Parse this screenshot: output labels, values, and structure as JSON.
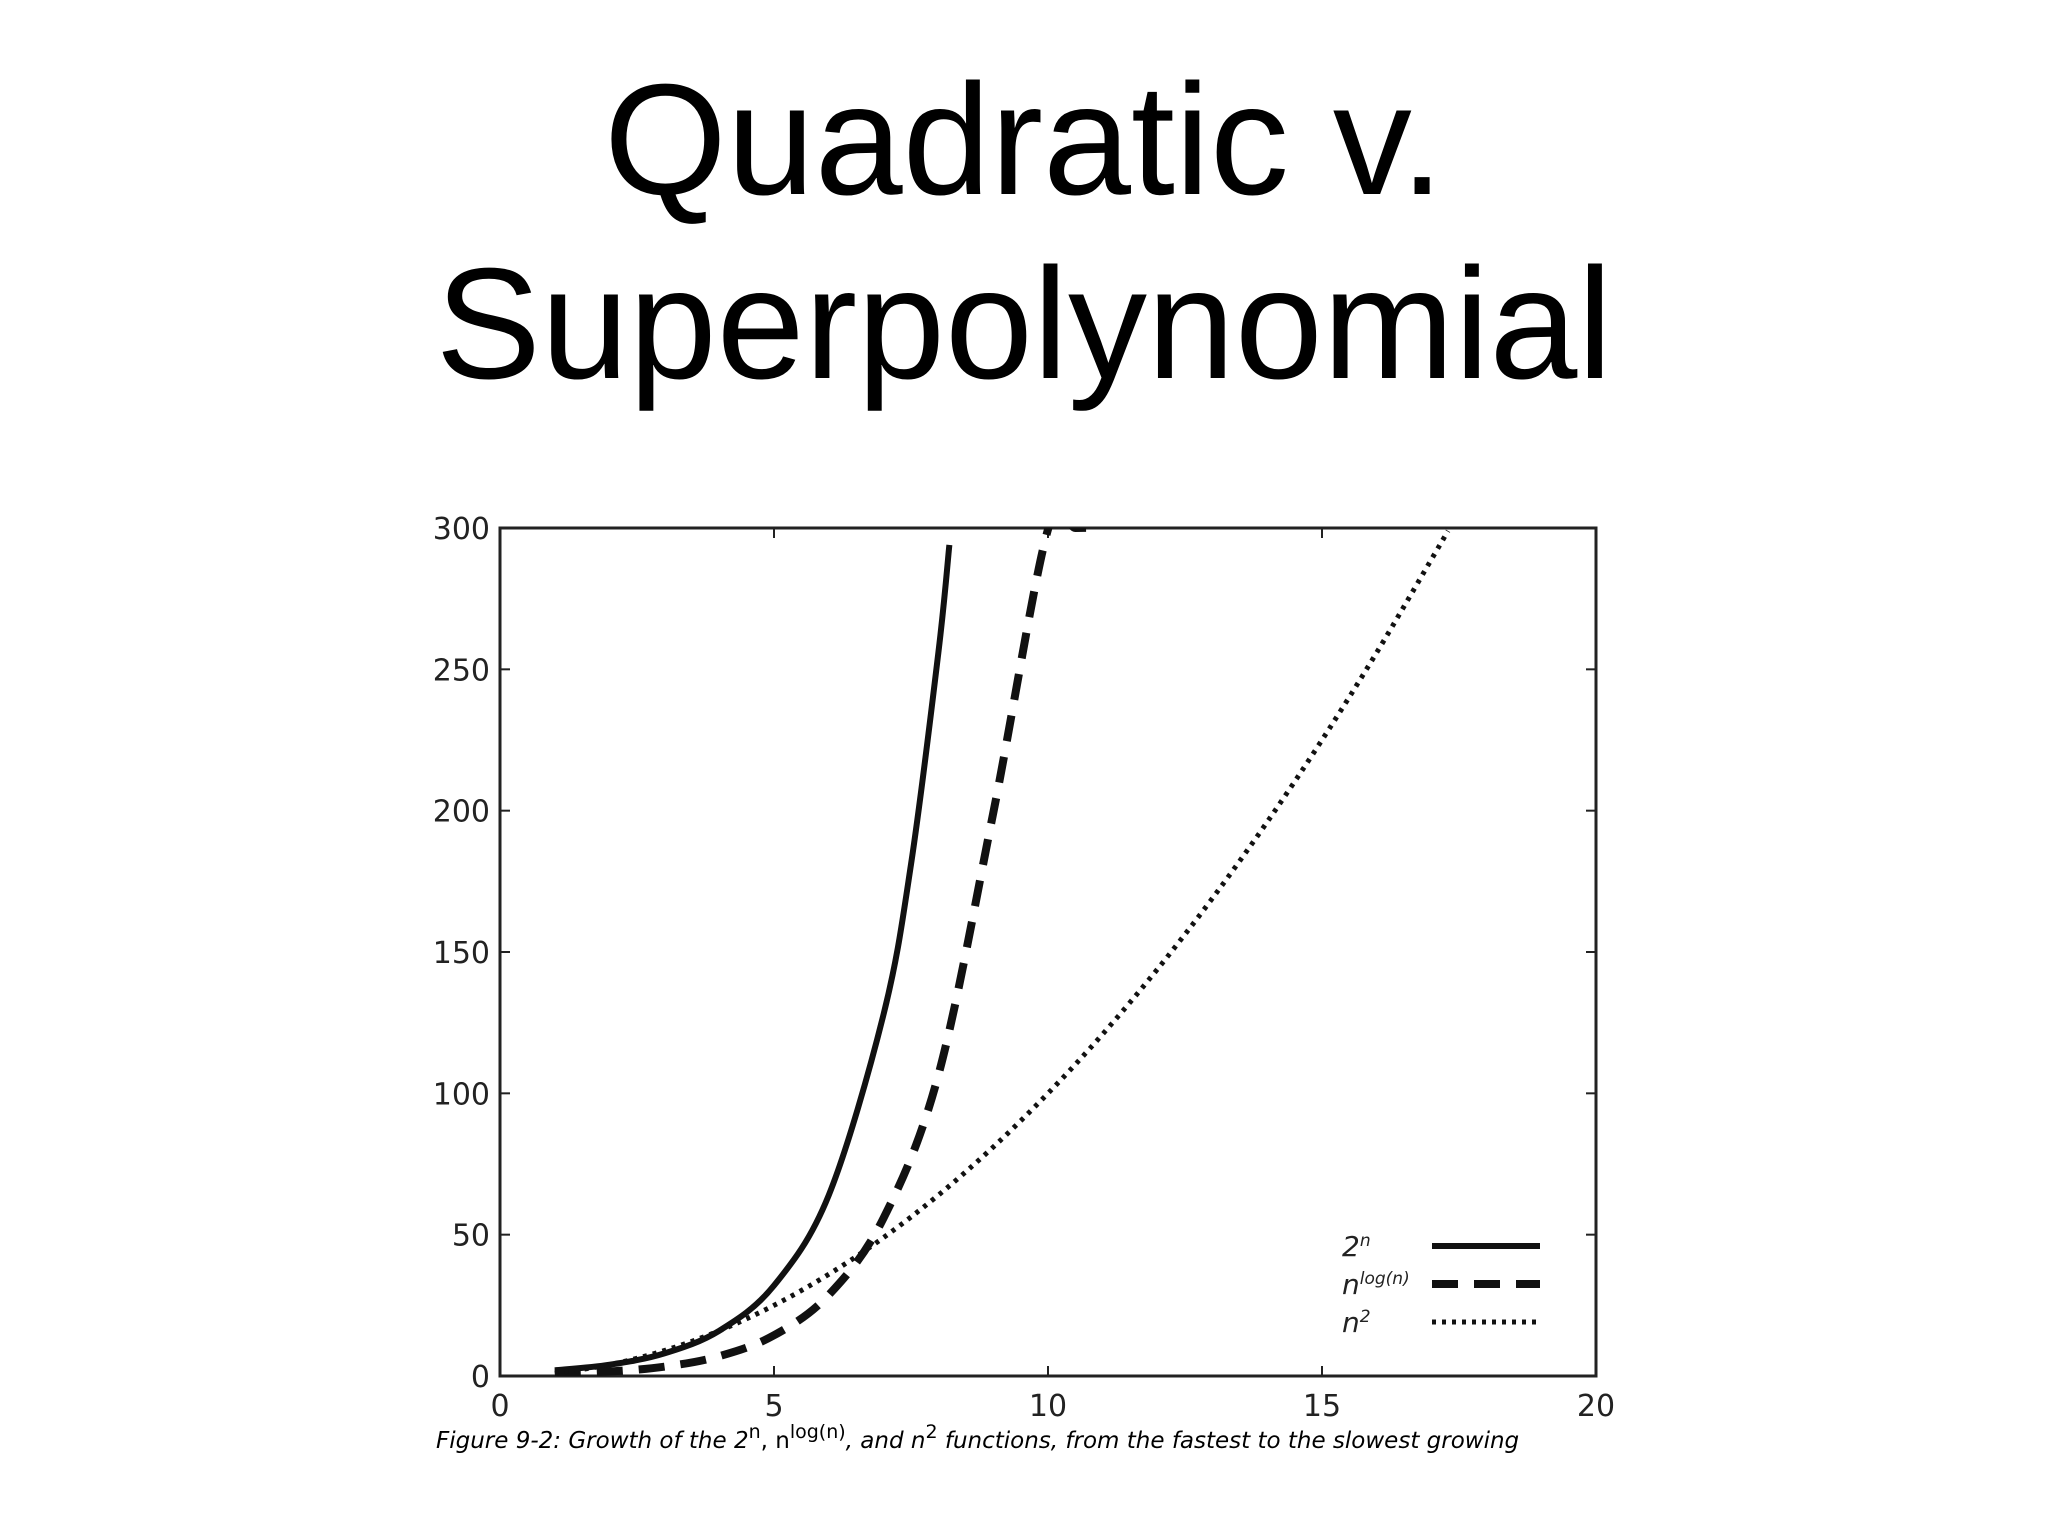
{
  "slide": {
    "title_line1": "Quadratic v.",
    "title_line2": "Superpolynomial"
  },
  "caption": {
    "prefix": "Figure 9-2: Growth of the 2",
    "sup1": "n",
    "sep1": ", n",
    "sup2": "log(n)",
    "sep2": ", and n",
    "sup3": "2",
    "suffix": " functions, from the fastest to the slowest growing"
  },
  "chart_data": {
    "type": "line",
    "title": "",
    "xlabel": "",
    "ylabel": "",
    "xlim": [
      0,
      20
    ],
    "ylim": [
      0,
      300
    ],
    "xticks": [
      0,
      5,
      10,
      15,
      20
    ],
    "yticks": [
      0,
      50,
      100,
      150,
      200,
      250,
      300
    ],
    "grid": false,
    "legend_position": "bottom-right",
    "series": [
      {
        "name": "2ⁿ",
        "name_base": "2",
        "name_sup": "n",
        "style": "solid",
        "x": [
          1,
          2,
          3,
          4,
          5,
          6,
          7,
          7.5,
          8,
          8.2
        ],
        "y": [
          2,
          4,
          8,
          16,
          32,
          64,
          128,
          181,
          256,
          294
        ]
      },
      {
        "name": "nˡᵒᵍ⁽ⁿ⁾",
        "name_base": "n",
        "name_sup": "log(n)",
        "style": "dashed",
        "x": [
          1,
          2,
          3,
          4,
          5,
          6,
          7,
          8,
          9,
          10,
          10.5,
          10.9
        ],
        "y": [
          1,
          1.6,
          3.3,
          7.0,
          14.4,
          28.7,
          55.9,
          106.5,
          199.1,
          299.5,
          300,
          300
        ]
      },
      {
        "name": "n²",
        "name_base": "n",
        "name_sup": "2",
        "style": "dotted",
        "x": [
          1,
          2,
          3,
          4,
          5,
          6,
          7,
          8,
          9,
          10,
          11,
          12,
          13,
          14,
          15,
          16,
          17,
          17.3
        ],
        "y": [
          1,
          4,
          9,
          16,
          25,
          36,
          49,
          64,
          81,
          100,
          121,
          144,
          169,
          196,
          225,
          256,
          289,
          299
        ]
      }
    ]
  }
}
